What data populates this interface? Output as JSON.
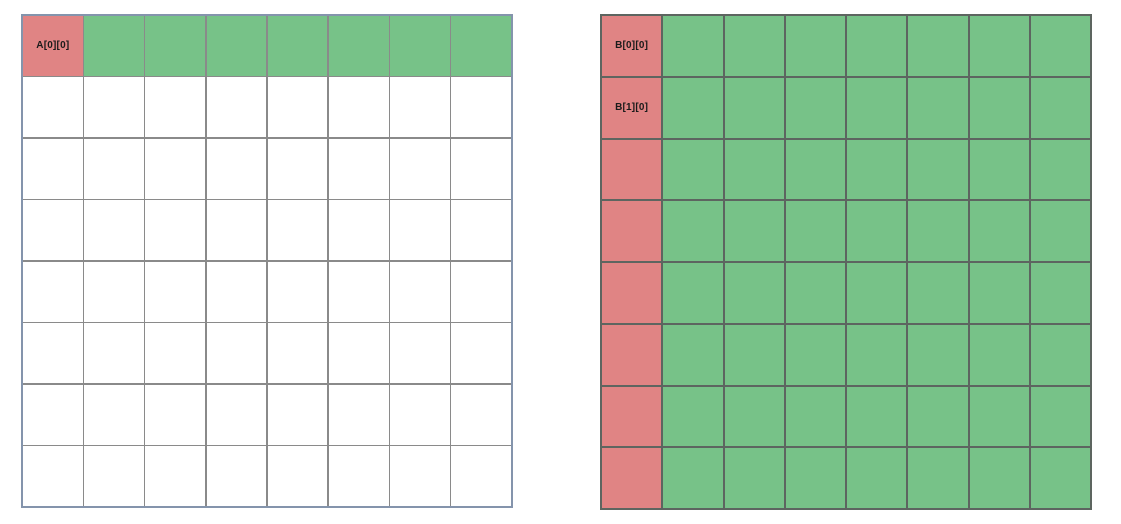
{
  "colors": {
    "g": "#77c288",
    "r": "#e08484",
    "w": "#ffffff"
  },
  "grids": {
    "a": {
      "id": "a",
      "rows": 8,
      "cols": 8,
      "line_color": "#8a8a8a",
      "outer_border_color": "#8494ac",
      "cell_colors": [
        [
          "r",
          "g",
          "g",
          "g",
          "g",
          "g",
          "g",
          "g"
        ],
        [
          "w",
          "w",
          "w",
          "w",
          "w",
          "w",
          "w",
          "w"
        ],
        [
          "w",
          "w",
          "w",
          "w",
          "w",
          "w",
          "w",
          "w"
        ],
        [
          "w",
          "w",
          "w",
          "w",
          "w",
          "w",
          "w",
          "w"
        ],
        [
          "w",
          "w",
          "w",
          "w",
          "w",
          "w",
          "w",
          "w"
        ],
        [
          "w",
          "w",
          "w",
          "w",
          "w",
          "w",
          "w",
          "w"
        ],
        [
          "w",
          "w",
          "w",
          "w",
          "w",
          "w",
          "w",
          "w"
        ],
        [
          "w",
          "w",
          "w",
          "w",
          "w",
          "w",
          "w",
          "w"
        ]
      ],
      "labels": {
        "0,0": "A[0][0]"
      }
    },
    "b": {
      "id": "b",
      "rows": 8,
      "cols": 8,
      "line_color": "#5d6560",
      "outer_border_color": "#5d6560",
      "cell_colors": [
        [
          "r",
          "g",
          "g",
          "g",
          "g",
          "g",
          "g",
          "g"
        ],
        [
          "r",
          "g",
          "g",
          "g",
          "g",
          "g",
          "g",
          "g"
        ],
        [
          "r",
          "g",
          "g",
          "g",
          "g",
          "g",
          "g",
          "g"
        ],
        [
          "r",
          "g",
          "g",
          "g",
          "g",
          "g",
          "g",
          "g"
        ],
        [
          "r",
          "g",
          "g",
          "g",
          "g",
          "g",
          "g",
          "g"
        ],
        [
          "r",
          "g",
          "g",
          "g",
          "g",
          "g",
          "g",
          "g"
        ],
        [
          "r",
          "g",
          "g",
          "g",
          "g",
          "g",
          "g",
          "g"
        ],
        [
          "r",
          "g",
          "g",
          "g",
          "g",
          "g",
          "g",
          "g"
        ]
      ],
      "labels": {
        "0,0": "B[0][0]",
        "1,0": "B[1][0]"
      }
    }
  }
}
